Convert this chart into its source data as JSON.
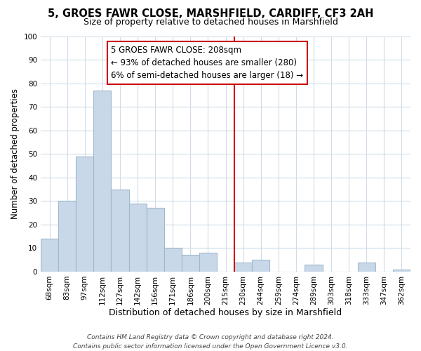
{
  "title": "5, GROES FAWR CLOSE, MARSHFIELD, CARDIFF, CF3 2AH",
  "subtitle": "Size of property relative to detached houses in Marshfield",
  "xlabel": "Distribution of detached houses by size in Marshfield",
  "ylabel": "Number of detached properties",
  "bar_labels": [
    "68sqm",
    "83sqm",
    "97sqm",
    "112sqm",
    "127sqm",
    "142sqm",
    "156sqm",
    "171sqm",
    "186sqm",
    "200sqm",
    "215sqm",
    "230sqm",
    "244sqm",
    "259sqm",
    "274sqm",
    "289sqm",
    "303sqm",
    "318sqm",
    "333sqm",
    "347sqm",
    "362sqm"
  ],
  "bar_heights": [
    14,
    30,
    49,
    77,
    35,
    29,
    27,
    10,
    7,
    8,
    0,
    4,
    5,
    0,
    0,
    3,
    0,
    0,
    4,
    0,
    1
  ],
  "bar_color": "#c8d8e8",
  "bar_edge_color": "#a0b8cc",
  "vline_x_index": 10.5,
  "vline_color": "#cc0000",
  "annotation_text": "5 GROES FAWR CLOSE: 208sqm\n← 93% of detached houses are smaller (280)\n6% of semi-detached houses are larger (18) →",
  "annotation_box_color": "#ffffff",
  "annotation_box_edge": "#cc0000",
  "ylim": [
    0,
    100
  ],
  "yticks": [
    0,
    10,
    20,
    30,
    40,
    50,
    60,
    70,
    80,
    90,
    100
  ],
  "footer1": "Contains HM Land Registry data © Crown copyright and database right 2024.",
  "footer2": "Contains public sector information licensed under the Open Government Licence v3.0.",
  "background_color": "#ffffff",
  "grid_color": "#d0dce8",
  "title_fontsize": 10.5,
  "subtitle_fontsize": 9,
  "ylabel_fontsize": 8.5,
  "xlabel_fontsize": 9,
  "tick_fontsize": 7.5,
  "footer_fontsize": 6.5,
  "annot_fontsize": 8.5
}
